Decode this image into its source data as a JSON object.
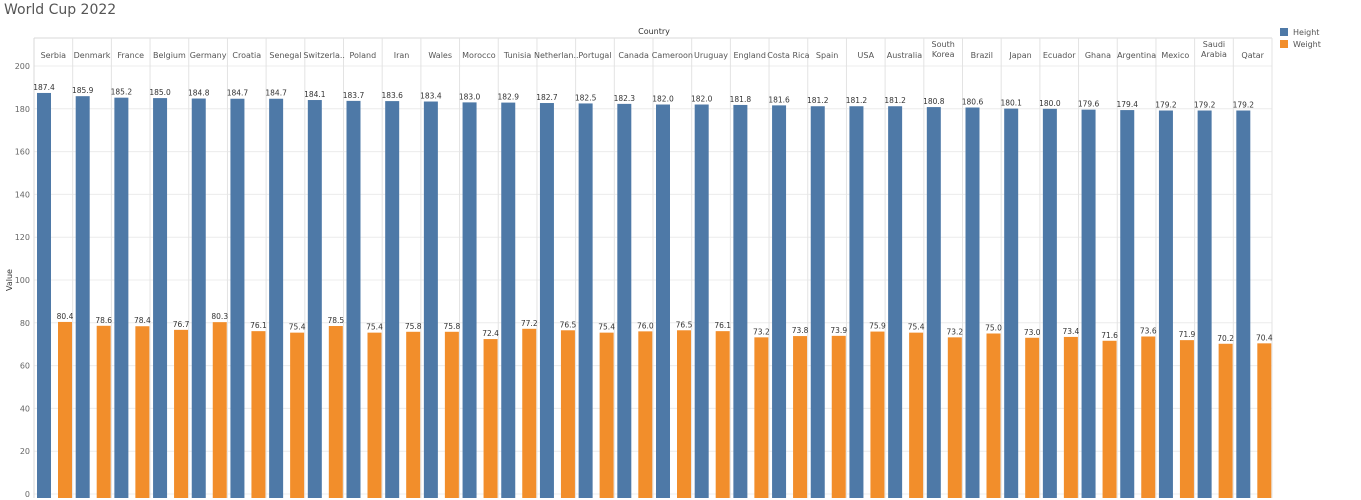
{
  "title": "World Cup 2022",
  "chart_data": {
    "type": "bar",
    "title": "World Cup 2022",
    "column_header": "Country",
    "ylabel": "Value",
    "ylim": [
      0,
      200
    ],
    "yticks": [
      0,
      20,
      40,
      60,
      80,
      100,
      120,
      140,
      160,
      180,
      200
    ],
    "grid": true,
    "legend_position": "top-right",
    "categories": [
      "Serbia",
      "Denmark",
      "France",
      "Belgium",
      "Germany",
      "Croatia",
      "Senegal",
      "Switzerla..",
      "Poland",
      "Iran",
      "Wales",
      "Morocco",
      "Tunisia",
      "Netherlan..",
      "Portugal",
      "Canada",
      "Cameroon",
      "Uruguay",
      "England",
      "Costa Rica",
      "Spain",
      "USA",
      "Australia",
      "South Korea",
      "Brazil",
      "Japan",
      "Ecuador",
      "Ghana",
      "Argentina",
      "Mexico",
      "Saudi Arabia",
      "Qatar"
    ],
    "series": [
      {
        "name": "Height",
        "color": "#4e79a7",
        "values": [
          187.4,
          185.9,
          185.2,
          185.0,
          184.8,
          184.7,
          184.7,
          184.1,
          183.7,
          183.6,
          183.4,
          183.0,
          182.9,
          182.7,
          182.5,
          182.3,
          182.0,
          182.0,
          181.8,
          181.6,
          181.2,
          181.2,
          181.2,
          180.8,
          180.6,
          180.1,
          180.0,
          179.6,
          179.4,
          179.2,
          179.2,
          179.2
        ]
      },
      {
        "name": "Weight",
        "color": "#f28e2b",
        "values": [
          80.4,
          78.6,
          78.4,
          76.7,
          80.3,
          76.1,
          75.4,
          78.5,
          75.4,
          75.8,
          75.8,
          72.4,
          77.2,
          76.5,
          75.4,
          76.0,
          76.5,
          76.1,
          73.2,
          73.8,
          73.9,
          75.9,
          75.4,
          73.2,
          75.0,
          73.0,
          73.4,
          71.6,
          73.6,
          71.9,
          70.2,
          70.4
        ]
      }
    ]
  }
}
